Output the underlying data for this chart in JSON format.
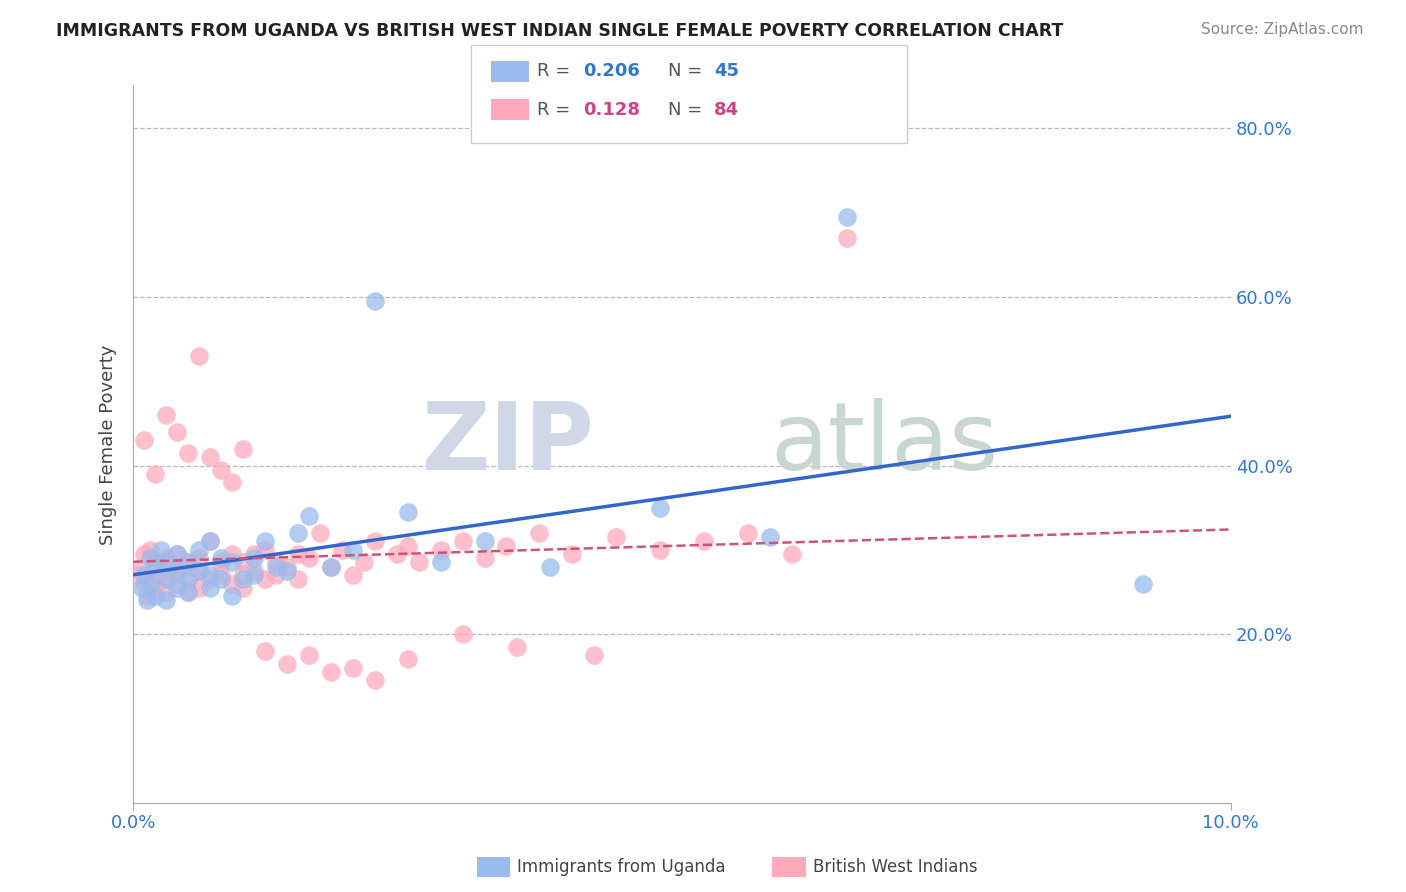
{
  "title": "IMMIGRANTS FROM UGANDA VS BRITISH WEST INDIAN SINGLE FEMALE POVERTY CORRELATION CHART",
  "source": "Source: ZipAtlas.com",
  "ylabel": "Single Female Poverty",
  "xlim": [
    0.0,
    0.1
  ],
  "ylim": [
    0.0,
    0.85
  ],
  "x_tick_labels": [
    "0.0%",
    "10.0%"
  ],
  "y_tick_labels_right": [
    "20.0%",
    "40.0%",
    "60.0%",
    "80.0%"
  ],
  "watermark_zip": "ZIP",
  "watermark_atlas": "atlas",
  "line1_color": "#3366cc",
  "line2_color": "#cc5577",
  "scatter1_color": "#99bbee",
  "scatter2_color": "#ffaabb",
  "R1": 0.206,
  "N1": 45,
  "R2": 0.128,
  "N2": 84,
  "scatter1_x": [
    0.0008,
    0.001,
    0.0012,
    0.0015,
    0.0015,
    0.002,
    0.002,
    0.0025,
    0.003,
    0.003,
    0.003,
    0.004,
    0.004,
    0.004,
    0.005,
    0.005,
    0.005,
    0.006,
    0.006,
    0.007,
    0.007,
    0.007,
    0.008,
    0.008,
    0.009,
    0.009,
    0.01,
    0.011,
    0.011,
    0.012,
    0.013,
    0.014,
    0.015,
    0.016,
    0.018,
    0.02,
    0.022,
    0.025,
    0.028,
    0.032,
    0.038,
    0.048,
    0.058,
    0.065,
    0.092
  ],
  "scatter1_y": [
    0.255,
    0.27,
    0.24,
    0.29,
    0.26,
    0.28,
    0.245,
    0.3,
    0.265,
    0.285,
    0.24,
    0.275,
    0.255,
    0.295,
    0.265,
    0.285,
    0.25,
    0.275,
    0.3,
    0.27,
    0.255,
    0.31,
    0.265,
    0.29,
    0.285,
    0.245,
    0.265,
    0.29,
    0.27,
    0.31,
    0.28,
    0.275,
    0.32,
    0.34,
    0.28,
    0.3,
    0.595,
    0.345,
    0.285,
    0.31,
    0.28,
    0.35,
    0.315,
    0.695,
    0.26
  ],
  "scatter2_x": [
    0.0005,
    0.0008,
    0.001,
    0.001,
    0.0012,
    0.0015,
    0.0015,
    0.002,
    0.002,
    0.002,
    0.0025,
    0.003,
    0.003,
    0.003,
    0.0035,
    0.004,
    0.004,
    0.004,
    0.005,
    0.005,
    0.005,
    0.006,
    0.006,
    0.006,
    0.007,
    0.007,
    0.008,
    0.008,
    0.009,
    0.009,
    0.01,
    0.01,
    0.01,
    0.011,
    0.011,
    0.012,
    0.012,
    0.013,
    0.013,
    0.014,
    0.015,
    0.015,
    0.016,
    0.017,
    0.018,
    0.019,
    0.02,
    0.021,
    0.022,
    0.024,
    0.025,
    0.026,
    0.028,
    0.03,
    0.032,
    0.034,
    0.037,
    0.04,
    0.044,
    0.048,
    0.052,
    0.056,
    0.06,
    0.065,
    0.001,
    0.002,
    0.003,
    0.004,
    0.005,
    0.006,
    0.007,
    0.008,
    0.009,
    0.01,
    0.012,
    0.014,
    0.016,
    0.018,
    0.02,
    0.022,
    0.025,
    0.03,
    0.035,
    0.042
  ],
  "scatter2_y": [
    0.27,
    0.28,
    0.26,
    0.295,
    0.245,
    0.27,
    0.3,
    0.255,
    0.285,
    0.265,
    0.275,
    0.25,
    0.29,
    0.265,
    0.28,
    0.26,
    0.295,
    0.27,
    0.25,
    0.285,
    0.265,
    0.275,
    0.29,
    0.255,
    0.265,
    0.31,
    0.27,
    0.285,
    0.26,
    0.295,
    0.27,
    0.285,
    0.255,
    0.275,
    0.295,
    0.265,
    0.3,
    0.27,
    0.285,
    0.28,
    0.295,
    0.265,
    0.29,
    0.32,
    0.28,
    0.3,
    0.27,
    0.285,
    0.31,
    0.295,
    0.305,
    0.285,
    0.3,
    0.31,
    0.29,
    0.305,
    0.32,
    0.295,
    0.315,
    0.3,
    0.31,
    0.32,
    0.295,
    0.67,
    0.43,
    0.39,
    0.46,
    0.44,
    0.415,
    0.53,
    0.41,
    0.395,
    0.38,
    0.42,
    0.18,
    0.165,
    0.175,
    0.155,
    0.16,
    0.145,
    0.17,
    0.2,
    0.185,
    0.175
  ]
}
